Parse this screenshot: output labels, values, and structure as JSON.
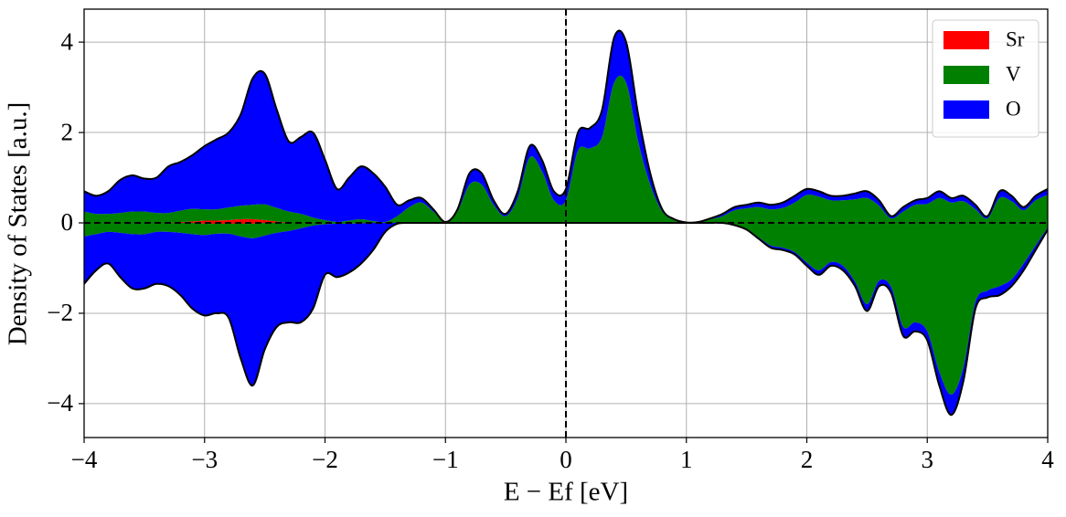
{
  "chart_data": {
    "type": "dos",
    "xlabel": "E − Ef [eV]",
    "ylabel": "Density of States [a.u.]",
    "xlim": [
      -4,
      4
    ],
    "ylim": [
      -4.75,
      4.73
    ],
    "xticks": [
      {
        "value": -4,
        "label": "−4"
      },
      {
        "value": -3,
        "label": "−3"
      },
      {
        "value": -2,
        "label": "−2"
      },
      {
        "value": -1,
        "label": "−1"
      },
      0,
      1,
      2,
      3,
      4
    ],
    "yticks": [
      {
        "value": -4,
        "label": "−4"
      },
      {
        "value": -2,
        "label": "−2"
      },
      0,
      2,
      4
    ],
    "grid": true,
    "legend": "upper right",
    "x": [
      -4,
      -3.9,
      -3.8,
      -3.7,
      -3.6,
      -3.5,
      -3.4,
      -3.3,
      -3.2,
      -3.1,
      -3,
      -2.9,
      -2.8,
      -2.7,
      -2.6,
      -2.5,
      -2.4,
      -2.3,
      -2.2,
      -2.1,
      -2,
      -1.9,
      -1.8,
      -1.7,
      -1.6,
      -1.5,
      -1.4,
      -1.3,
      -1.2,
      -1.1,
      -1,
      -0.9,
      -0.8,
      -0.7,
      -0.6,
      -0.5,
      -0.4,
      -0.3,
      -0.2,
      -0.1,
      0,
      0.1,
      0.2,
      0.3,
      0.4,
      0.5,
      0.6,
      0.7,
      0.8,
      0.9,
      1,
      1.1,
      1.2,
      1.3,
      1.4,
      1.5,
      1.6,
      1.7,
      1.8,
      1.9,
      2,
      2.1,
      2.2,
      2.3,
      2.4,
      2.5,
      2.6,
      2.7,
      2.8,
      2.9,
      3,
      3.1,
      3.2,
      3.3,
      3.4,
      3.5,
      3.6,
      3.7,
      3.8,
      3.9,
      4
    ],
    "series": [
      {
        "name": "Sr",
        "color": "#ff0000",
        "values": [
          0,
          0,
          0,
          0,
          0,
          0,
          0,
          0,
          0.02,
          0.03,
          0.05,
          0.05,
          0.06,
          0.08,
          0.08,
          0.06,
          0.03,
          0,
          0,
          0,
          0,
          0,
          0,
          0,
          0,
          0,
          0,
          0,
          0,
          0,
          0,
          0,
          0,
          0,
          0,
          0,
          0,
          0,
          0,
          0,
          0,
          0,
          0,
          0,
          0,
          0,
          0,
          0,
          0,
          0,
          0,
          0,
          0,
          0,
          0,
          0,
          0,
          0,
          0,
          0,
          0,
          0,
          0,
          0,
          0,
          0,
          0,
          0,
          0,
          0,
          0,
          0,
          0,
          0,
          0,
          0,
          0,
          0,
          0,
          0,
          0
        ],
        "values_down": [
          0,
          0,
          0,
          0,
          0,
          0,
          0,
          0,
          0,
          0,
          -0.02,
          -0.02,
          -0.02,
          -0.02,
          -0.02,
          0,
          0,
          0,
          0,
          0,
          0,
          0,
          0,
          0,
          0,
          0,
          0,
          0,
          0,
          0,
          0,
          0,
          0,
          0,
          0,
          0,
          0,
          0,
          0,
          0,
          0,
          0,
          0,
          0,
          0,
          0,
          0,
          0,
          0,
          0,
          0,
          0,
          0,
          0,
          0,
          0,
          0,
          0,
          0,
          0,
          0,
          0,
          0,
          0,
          0,
          0,
          0,
          0,
          0,
          0,
          0,
          0,
          0,
          0,
          0,
          0,
          0,
          0,
          0,
          0,
          0
        ]
      },
      {
        "name": "V",
        "color": "#008000",
        "values": [
          0.25,
          0.2,
          0.2,
          0.22,
          0.25,
          0.25,
          0.22,
          0.22,
          0.25,
          0.28,
          0.25,
          0.25,
          0.28,
          0.3,
          0.32,
          0.35,
          0.3,
          0.25,
          0.2,
          0.12,
          0.06,
          0.02,
          0.05,
          0.08,
          0.04,
          0.02,
          0.15,
          0.35,
          0.45,
          0.25,
          0.02,
          0.25,
          0.85,
          0.85,
          0.4,
          0.15,
          0.55,
          1.45,
          1.15,
          0.5,
          0.5,
          1.6,
          1.65,
          1.9,
          3.1,
          3.1,
          1.8,
          0.85,
          0.25,
          0.06,
          0.01,
          0.02,
          0.08,
          0.15,
          0.28,
          0.32,
          0.35,
          0.3,
          0.33,
          0.45,
          0.62,
          0.58,
          0.5,
          0.5,
          0.52,
          0.55,
          0.38,
          0.1,
          0.25,
          0.4,
          0.42,
          0.55,
          0.45,
          0.48,
          0.3,
          0.1,
          0.55,
          0.48,
          0.28,
          0.5,
          0.62
        ],
        "values_down": [
          -0.3,
          -0.25,
          -0.2,
          -0.22,
          -0.25,
          -0.25,
          -0.2,
          -0.2,
          -0.22,
          -0.25,
          -0.25,
          -0.22,
          -0.22,
          -0.28,
          -0.32,
          -0.28,
          -0.22,
          -0.18,
          -0.12,
          -0.06,
          -0.03,
          -0.02,
          -0.02,
          -0.01,
          0,
          0,
          0,
          0,
          0,
          0,
          0,
          0,
          0,
          0,
          0,
          0,
          0,
          0,
          0,
          0,
          0,
          0,
          0,
          0,
          0,
          0,
          0,
          0,
          0,
          0,
          0,
          0,
          0,
          0,
          -0.04,
          -0.13,
          -0.32,
          -0.5,
          -0.55,
          -0.65,
          -0.88,
          -1.05,
          -0.87,
          -0.95,
          -1.3,
          -1.8,
          -1.28,
          -1.42,
          -2.3,
          -2.2,
          -2.4,
          -3.3,
          -3.8,
          -3.2,
          -1.75,
          -1.5,
          -1.4,
          -1.25,
          -0.9,
          -0.5,
          -0.1
        ]
      },
      {
        "name": "O",
        "color": "#0000ff",
        "values": [
          0.45,
          0.4,
          0.5,
          0.73,
          0.8,
          0.73,
          0.78,
          1.03,
          1.08,
          1.19,
          1.4,
          1.55,
          1.66,
          2.02,
          2.8,
          2.89,
          2.17,
          1.55,
          1.7,
          1.88,
          1.34,
          0.73,
          0.95,
          1.17,
          1.06,
          0.78,
          0.25,
          0.15,
          0.1,
          0.05,
          0,
          0.05,
          0.25,
          0.25,
          0.1,
          0.05,
          0.15,
          0.25,
          0.25,
          0.2,
          0.25,
          0.4,
          0.45,
          0.6,
          1.0,
          0.9,
          0.6,
          0.25,
          0.05,
          0.02,
          0,
          0,
          0.02,
          0.05,
          0.07,
          0.08,
          0.1,
          0.1,
          0.12,
          0.15,
          0.13,
          0.12,
          0.1,
          0.1,
          0.13,
          0.15,
          0.12,
          0.05,
          0.1,
          0.1,
          0.13,
          0.15,
          0.1,
          0.12,
          0.1,
          0.05,
          0.15,
          0.12,
          0.07,
          0.1,
          0.13
        ],
        "values_down": [
          -1.05,
          -0.8,
          -0.7,
          -0.98,
          -1.2,
          -1.2,
          -1.15,
          -1.2,
          -1.38,
          -1.65,
          -1.78,
          -1.76,
          -1.86,
          -2.7,
          -3.26,
          -2.52,
          -2.08,
          -2.02,
          -2.08,
          -1.84,
          -1.12,
          -1.18,
          -1.08,
          -0.89,
          -0.6,
          -0.2,
          -0.02,
          0,
          0,
          0,
          0,
          0,
          0,
          0,
          0,
          0,
          0,
          0,
          0,
          0,
          0,
          0,
          0,
          0,
          0,
          0,
          0,
          0,
          0,
          0,
          0,
          0,
          0,
          0,
          -0.01,
          -0.02,
          -0.03,
          -0.05,
          -0.05,
          -0.05,
          -0.07,
          -0.1,
          -0.08,
          -0.1,
          -0.1,
          -0.15,
          -0.12,
          -0.13,
          -0.2,
          -0.2,
          -0.2,
          -0.3,
          -0.45,
          -0.3,
          -0.15,
          -0.15,
          -0.2,
          -0.15,
          -0.15,
          -0.1,
          -0.05
        ]
      }
    ]
  }
}
